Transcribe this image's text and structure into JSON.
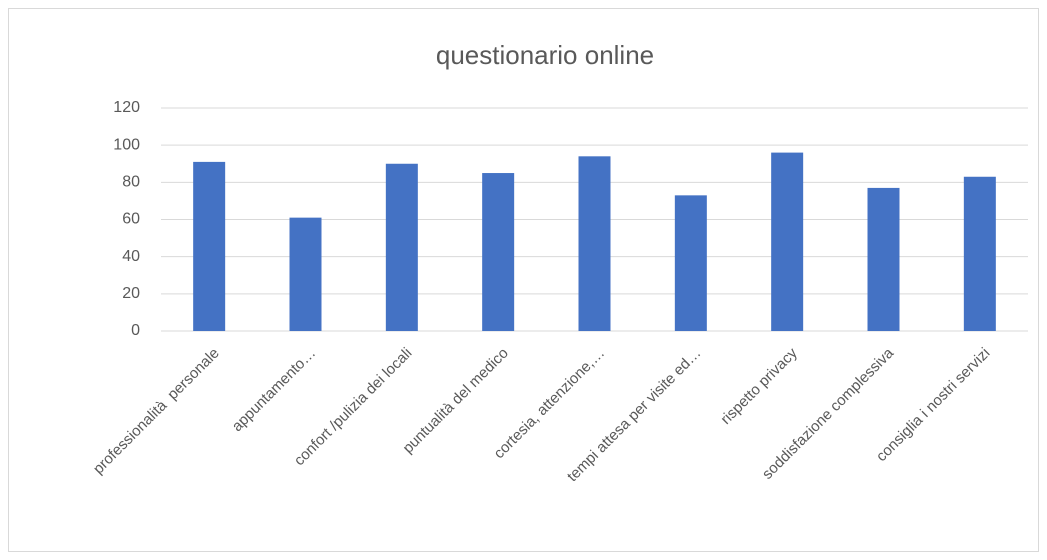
{
  "chart_data": {
    "type": "bar",
    "title": "questionario online",
    "categories": [
      "professionalità  personale",
      "appuntamento…",
      "confort /pulizia dei locali",
      "puntualità del medico",
      "cortesia, attenzione,…",
      "tempi attesa per visite ed…",
      "rispetto privacy",
      "soddisfazione complessiva",
      "consiglia i nostri servizi"
    ],
    "values": [
      91,
      61,
      90,
      85,
      94,
      73,
      96,
      77,
      83
    ],
    "color": "#4472c4",
    "ylim": [
      0,
      120
    ],
    "yticks": [
      0,
      20,
      40,
      60,
      80,
      100,
      120
    ],
    "grid": true
  }
}
